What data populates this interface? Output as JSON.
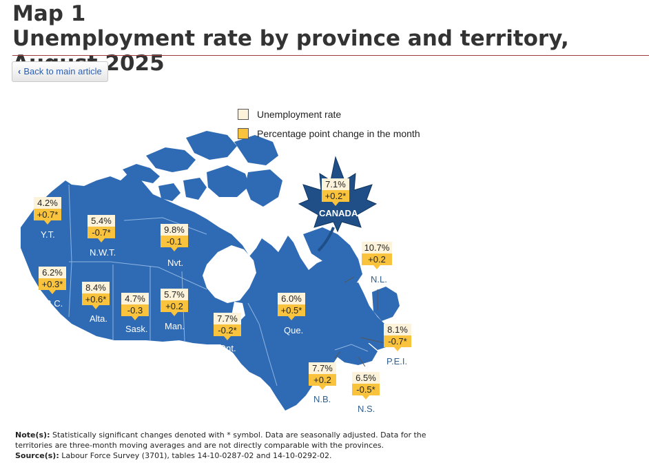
{
  "title_line1": "Map 1",
  "title_line2": "Unemployment rate by province and territory, August 2025",
  "back_button": {
    "label": "Back to main article"
  },
  "legend": {
    "rate_label": "Unemployment rate",
    "change_label": "Percentage point change in the month",
    "rate_color": "#fdf3da",
    "change_color": "#f9c33d"
  },
  "map_color": "#2f6bb5",
  "canada": {
    "label": "CANADA",
    "rate": "7.1%",
    "change": "+0.2*"
  },
  "regions": [
    {
      "abbr": "Y.T.",
      "rate": "4.2%",
      "change": "+0.7*"
    },
    {
      "abbr": "N.W.T.",
      "rate": "5.4%",
      "change": "-0.7*"
    },
    {
      "abbr": "Nvt.",
      "rate": "9.8%",
      "change": "-0.1"
    },
    {
      "abbr": "B.C.",
      "rate": "6.2%",
      "change": "+0.3*"
    },
    {
      "abbr": "Alta.",
      "rate": "8.4%",
      "change": "+0.6*"
    },
    {
      "abbr": "Sask.",
      "rate": "4.7%",
      "change": "-0.3"
    },
    {
      "abbr": "Man.",
      "rate": "5.7%",
      "change": "+0.2"
    },
    {
      "abbr": "Ont.",
      "rate": "7.7%",
      "change": "-0.2*"
    },
    {
      "abbr": "Que.",
      "rate": "6.0%",
      "change": "+0.5*"
    },
    {
      "abbr": "N.L.",
      "rate": "10.7%",
      "change": "+0.2"
    },
    {
      "abbr": "P.E.I.",
      "rate": "8.1%",
      "change": "-0.7*"
    },
    {
      "abbr": "N.B.",
      "rate": "7.7%",
      "change": "+0.2"
    },
    {
      "abbr": "N.S.",
      "rate": "6.5%",
      "change": "-0.5*"
    }
  ],
  "notes": {
    "note_label": "Note(s):",
    "note_text": "Statistically significant changes denoted with * symbol. Data are seasonally adjusted. Data for the territories are three-month moving averages and are not directly comparable with the provinces.",
    "source_label": "Source(s):",
    "source_text": "Labour Force Survey (3701), tables 14-10-0287-02 and 14-10-0292-02."
  }
}
